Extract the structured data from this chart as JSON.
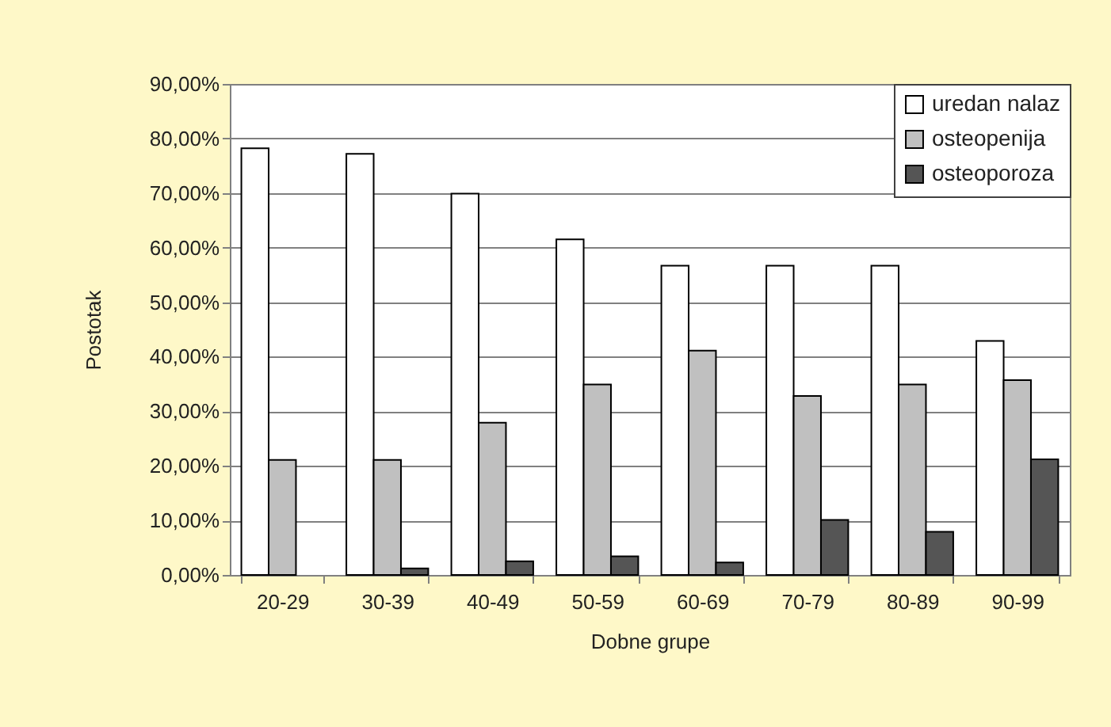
{
  "chart_data": {
    "type": "bar",
    "xlabel": "Dobne grupe",
    "ylabel": "Postotak",
    "categories": [
      "20-29",
      "30-39",
      "40-49",
      "50-59",
      "60-69",
      "70-79",
      "80-89",
      "90-99"
    ],
    "series": [
      {
        "name": "uredan nalaz",
        "color": "#ffffff",
        "values": [
          78.2,
          77.2,
          69.9,
          61.5,
          56.7,
          56.7,
          56.7,
          42.9
        ]
      },
      {
        "name": "osteopenija",
        "color": "#c0c0c0",
        "values": [
          21.1,
          21.1,
          27.9,
          34.9,
          41.1,
          32.8,
          34.9,
          35.7
        ]
      },
      {
        "name": "osteoporoza",
        "color": "#555555",
        "values": [
          null,
          1.2,
          2.5,
          3.4,
          2.3,
          10.1,
          7.9,
          21.2
        ]
      }
    ],
    "ylim": [
      0,
      90
    ],
    "yticks": [
      {
        "value": 0,
        "label": "0,00%"
      },
      {
        "value": 10,
        "label": "10,00%"
      },
      {
        "value": 20,
        "label": "20,00%"
      },
      {
        "value": 30,
        "label": "30,00%"
      },
      {
        "value": 40,
        "label": "40,00%"
      },
      {
        "value": 50,
        "label": "50,00%"
      },
      {
        "value": 60,
        "label": "60,00%"
      },
      {
        "value": 70,
        "label": "70,00%"
      },
      {
        "value": 80,
        "label": "80,00%"
      },
      {
        "value": 90,
        "label": "90,00%"
      }
    ],
    "grid": "y",
    "legend": "top right"
  }
}
